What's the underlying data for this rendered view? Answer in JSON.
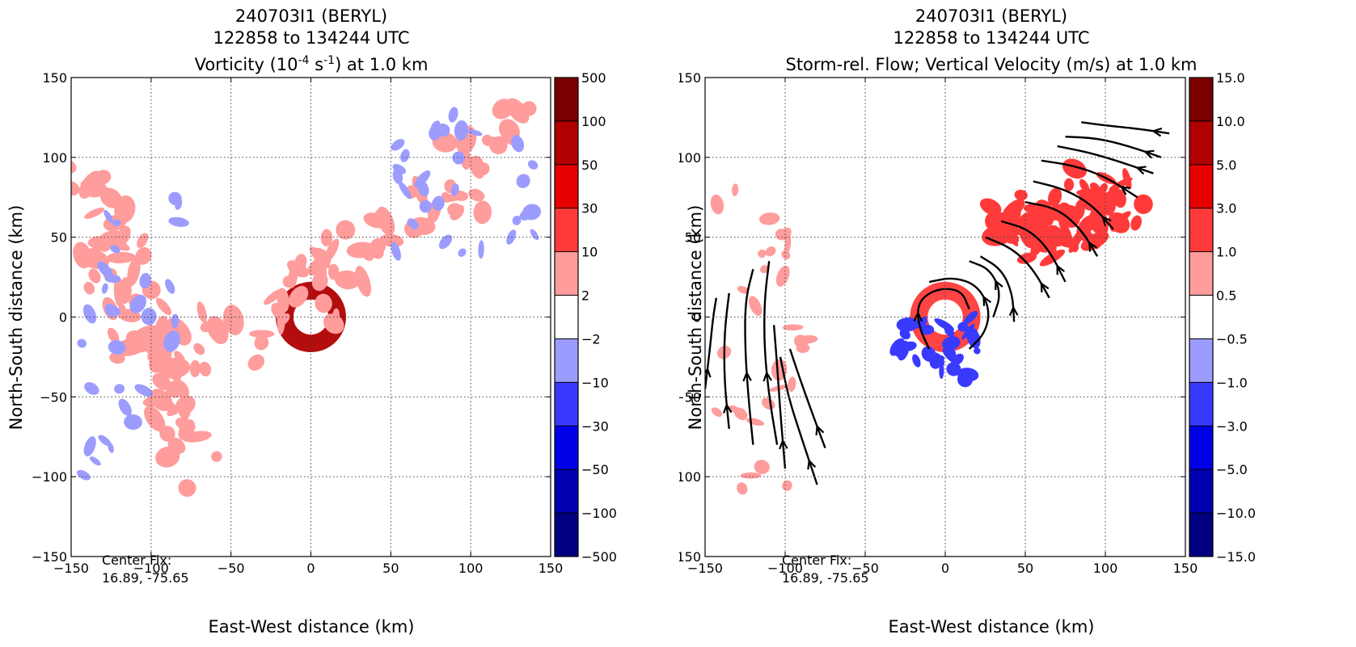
{
  "chart_data": [
    {
      "type": "heatmap",
      "title_lines": [
        "240703I1 (BERYL)",
        "122858 to 134244 UTC"
      ],
      "title_line3": {
        "prefix": "Vorticity (10",
        "exp": "-4",
        "mid": " s",
        "exp2": "-1",
        "suffix": ") at 1.0 km"
      },
      "xlabel": "East-West distance (km)",
      "ylabel": "North-South distance (km)",
      "xlim": [
        -150,
        150
      ],
      "ylim": [
        -150,
        150
      ],
      "xticks": [
        "−150",
        "−100",
        "−50",
        "0",
        "50",
        "100",
        "150"
      ],
      "yticks": [
        "150",
        "100",
        "50",
        "0",
        "−50",
        "−100",
        "−150"
      ],
      "grid": true,
      "colorbar": {
        "labels": [
          "500",
          "100",
          "50",
          "30",
          "10",
          "2",
          "−2",
          "−10",
          "−30",
          "−50",
          "−100",
          "−500"
        ],
        "colors": [
          "#7a0000",
          "#b00000",
          "#e60000",
          "#ff3a3a",
          "#ff9c9c",
          "#ffffff",
          "#9c9cff",
          "#3a3aff",
          "#0000e6",
          "#0000b0",
          "#000080"
        ]
      },
      "annotation": [
        "Center Fix:",
        "16.89, -75.65"
      ],
      "fields": [
        {
          "kind": "ring",
          "cx": 0,
          "cy": 0,
          "r_inner": 11,
          "r_outer": 22,
          "value": "100 to 500",
          "color": "#b00000"
        },
        {
          "kind": "band",
          "from": [
            -60,
            -25
          ],
          "to": [
            140,
            120
          ],
          "value": "2 to 10",
          "color": "#ff9c9c"
        },
        {
          "kind": "band",
          "from": [
            -140,
            80
          ],
          "to": [
            -70,
            -100
          ],
          "value": "2 to 10",
          "color": "#ff9c9c"
        },
        {
          "kind": "scatter",
          "region": [
            [
              -145,
              75
            ],
            [
              -80,
              -110
            ]
          ],
          "value": "−2 to −10",
          "color": "#9c9cff"
        },
        {
          "kind": "scatter",
          "region": [
            [
              50,
              40
            ],
            [
              140,
              130
            ]
          ],
          "value": "−2 to −10",
          "color": "#9c9cff"
        }
      ]
    },
    {
      "type": "heatmap",
      "title_lines": [
        "240703I1 (BERYL)",
        "122858 to 134244 UTC",
        "Storm-rel. Flow; Vertical Velocity (m/s) at 1.0 km"
      ],
      "xlabel": "East-West distance (km)",
      "ylabel": "North-South distance (km)",
      "xlim": [
        -150,
        150
      ],
      "ylim": [
        -150,
        150
      ],
      "xticks": [
        "−150",
        "−100",
        "−50",
        "0",
        "50",
        "100",
        "150"
      ],
      "yticks": [
        "150",
        "100",
        "50",
        "0",
        "−50",
        "−100",
        "−150"
      ],
      "grid": true,
      "colorbar": {
        "labels": [
          "15.0",
          "10.0",
          "5.0",
          "3.0",
          "1.0",
          "0.5",
          "−0.5",
          "−1.0",
          "−3.0",
          "−5.0",
          "−10.0",
          "−15.0"
        ],
        "colors": [
          "#7a0000",
          "#b00000",
          "#e60000",
          "#ff3a3a",
          "#ff9c9c",
          "#ffffff",
          "#9c9cff",
          "#3a3aff",
          "#0000e6",
          "#0000b0",
          "#000080"
        ]
      },
      "annotation": [
        "Center Fix:",
        "16.89, -75.65"
      ],
      "fields": [
        {
          "kind": "ring",
          "cx": 0,
          "cy": 0,
          "r_inner": 11,
          "r_outer": 22,
          "value": "1.0 to 5.0",
          "color": "#ff3a3a"
        },
        {
          "kind": "band",
          "from": [
            40,
            50
          ],
          "to": [
            110,
            80
          ],
          "value": "1.0 to 5.0",
          "color": "#ff3a3a"
        },
        {
          "kind": "scatter",
          "region": [
            [
              -145,
              80
            ],
            [
              -80,
              -110
            ]
          ],
          "value": "0.5 to 3.0",
          "color": "#ff9c9c"
        },
        {
          "kind": "scatter",
          "region": [
            [
              -30,
              0
            ],
            [
              20,
              -40
            ]
          ],
          "value": "−0.5 to −3.0",
          "color": "#3a3aff"
        }
      ],
      "streamlines": [
        {
          "points": [
            [
              -150,
              -45
            ],
            [
              -147,
              -20
            ],
            [
              -145,
              0
            ],
            [
              -143,
              12
            ]
          ],
          "arrow_at": 1
        },
        {
          "points": [
            [
              -135,
              -70
            ],
            [
              -138,
              -40
            ],
            [
              -138,
              -10
            ],
            [
              -135,
              15
            ]
          ],
          "arrow_at": 1
        },
        {
          "points": [
            [
              -120,
              -80
            ],
            [
              -123,
              -50
            ],
            [
              -125,
              -20
            ],
            [
              -125,
              10
            ],
            [
              -120,
              30
            ]
          ],
          "arrow_at": 2
        },
        {
          "points": [
            [
              -105,
              -80
            ],
            [
              -110,
              -50
            ],
            [
              -113,
              -20
            ],
            [
              -113,
              10
            ],
            [
              -110,
              35
            ]
          ],
          "arrow_at": 2
        },
        {
          "points": [
            [
              -100,
              -95
            ],
            [
              -103,
              -60
            ],
            [
              -105,
              -30
            ],
            [
              -107,
              -5
            ]
          ],
          "arrow_at": 1
        },
        {
          "points": [
            [
              -80,
              -105
            ],
            [
              -90,
              -75
            ],
            [
              -98,
              -50
            ],
            [
              -103,
              -25
            ]
          ],
          "arrow_at": 1
        },
        {
          "points": [
            [
              -75,
              -82
            ],
            [
              -85,
              -55
            ],
            [
              -92,
              -35
            ],
            [
              -97,
              -20
            ]
          ],
          "arrow_at": 1
        },
        {
          "points": [
            [
              -10,
              -20
            ],
            [
              -17,
              -5
            ],
            [
              -17,
              10
            ],
            [
              -5,
              18
            ],
            [
              10,
              17
            ],
            [
              15,
              5
            ]
          ],
          "arrow_at": 2
        },
        {
          "points": [
            [
              15,
              -20
            ],
            [
              25,
              -10
            ],
            [
              28,
              5
            ],
            [
              20,
              20
            ],
            [
              5,
              25
            ],
            [
              -10,
              22
            ]
          ],
          "arrow_at": 3
        },
        {
          "points": [
            [
              30,
              0
            ],
            [
              35,
              15
            ],
            [
              28,
              30
            ],
            [
              15,
              35
            ]
          ],
          "arrow_at": 2
        },
        {
          "points": [
            [
              43,
              -3
            ],
            [
              42,
              15
            ],
            [
              35,
              30
            ],
            [
              22,
              38
            ]
          ],
          "arrow_at": 1
        },
        {
          "points": [
            [
              65,
              12
            ],
            [
              55,
              30
            ],
            [
              42,
              43
            ],
            [
              25,
              50
            ]
          ],
          "arrow_at": 1
        },
        {
          "points": [
            [
              75,
              22
            ],
            [
              65,
              42
            ],
            [
              52,
              55
            ],
            [
              35,
              60
            ]
          ],
          "arrow_at": 1
        },
        {
          "points": [
            [
              95,
              38
            ],
            [
              85,
              55
            ],
            [
              70,
              68
            ],
            [
              50,
              72
            ]
          ],
          "arrow_at": 1
        },
        {
          "points": [
            [
              105,
              55
            ],
            [
              92,
              70
            ],
            [
              75,
              80
            ],
            [
              55,
              85
            ]
          ],
          "arrow_at": 1
        },
        {
          "points": [
            [
              120,
              75
            ],
            [
              100,
              88
            ],
            [
              80,
              95
            ],
            [
              60,
              98
            ]
          ],
          "arrow_at": 1
        },
        {
          "points": [
            [
              130,
              90
            ],
            [
              110,
              97
            ],
            [
              90,
              103
            ],
            [
              70,
              107
            ]
          ],
          "arrow_at": 1
        },
        {
          "points": [
            [
              135,
              100
            ],
            [
              115,
              107
            ],
            [
              95,
              112
            ],
            [
              75,
              113
            ]
          ],
          "arrow_at": 1
        },
        {
          "points": [
            [
              140,
              115
            ],
            [
              120,
              118
            ],
            [
              100,
              120
            ],
            [
              85,
              122
            ]
          ],
          "arrow_at": 1
        }
      ]
    }
  ]
}
